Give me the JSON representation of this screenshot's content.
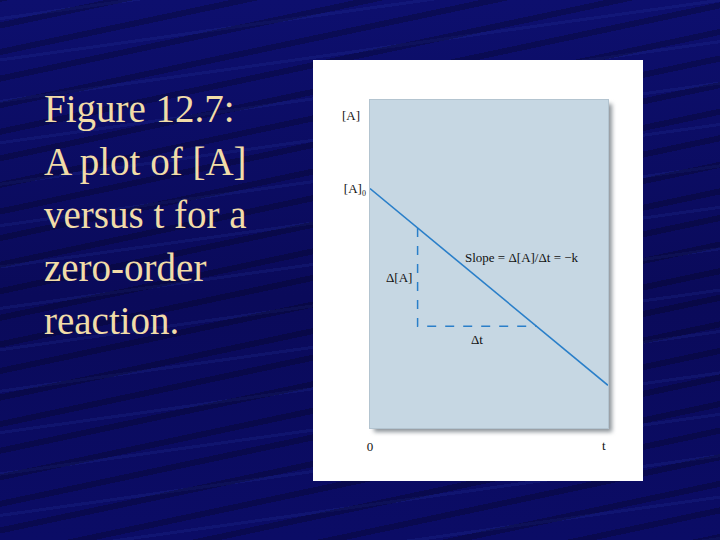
{
  "chart_data": {
    "type": "line",
    "title": "Figure 12.7:  A plot of [A] versus t for a zero-order reaction.",
    "x_label": "t",
    "y_label": "[A]",
    "x": [
      0,
      10
    ],
    "values": [
      7.3,
      1.3
    ],
    "color": "#2a7fc9",
    "xlim": [
      0,
      10
    ],
    "ylim": [
      0,
      10
    ],
    "xticks": [
      0
    ],
    "yticks": [
      {
        "value": 7.3,
        "label": "[A]₀"
      }
    ],
    "grid": false,
    "triangle": {
      "x": [
        2,
        2,
        7
      ],
      "y": [
        6.1,
        3.1,
        3.1
      ],
      "line_style": "dashed",
      "color": "#2a7fc9",
      "labels": [
        "Δ[A]",
        "Δt"
      ]
    },
    "annotations": [
      {
        "text": "Slope = Δ[A]/Δt = −k"
      }
    ]
  }
}
